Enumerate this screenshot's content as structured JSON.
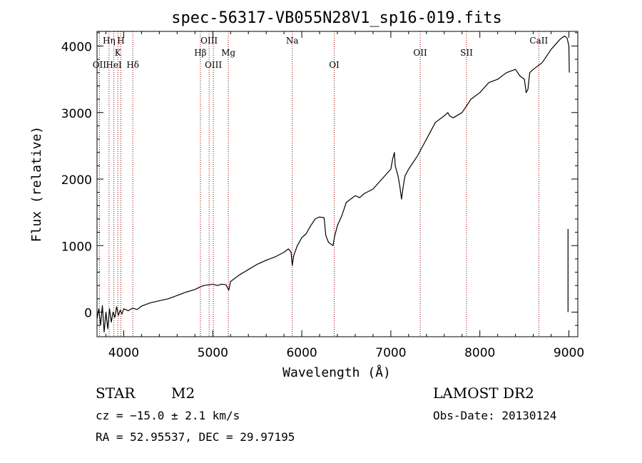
{
  "chart_data": {
    "type": "line",
    "title": "spec-56317-VB055N28V1_sp16-019.fits",
    "xlabel": "Wavelength (Å)",
    "ylabel": "Flux (relative)",
    "xlim": [
      3700,
      9100
    ],
    "ylim": [
      -370,
      4220
    ],
    "xticks": [
      4000,
      5000,
      6000,
      7000,
      8000,
      9000
    ],
    "yticks": [
      0,
      1000,
      2000,
      3000,
      4000
    ],
    "line_color": "#000000",
    "marker_color": "#990000",
    "series": [
      {
        "name": "flux",
        "points": [
          [
            3700,
            -100
          ],
          [
            3720,
            50
          ],
          [
            3740,
            -200
          ],
          [
            3760,
            100
          ],
          [
            3780,
            -300
          ],
          [
            3800,
            0
          ],
          [
            3820,
            -250
          ],
          [
            3840,
            50
          ],
          [
            3860,
            -150
          ],
          [
            3880,
            0
          ],
          [
            3900,
            -80
          ],
          [
            3920,
            80
          ],
          [
            3940,
            -50
          ],
          [
            3960,
            30
          ],
          [
            3980,
            -30
          ],
          [
            4000,
            50
          ],
          [
            4050,
            20
          ],
          [
            4100,
            60
          ],
          [
            4150,
            40
          ],
          [
            4200,
            90
          ],
          [
            4300,
            140
          ],
          [
            4400,
            170
          ],
          [
            4500,
            200
          ],
          [
            4600,
            250
          ],
          [
            4700,
            300
          ],
          [
            4800,
            340
          ],
          [
            4860,
            380
          ],
          [
            4900,
            400
          ],
          [
            4950,
            410
          ],
          [
            5000,
            420
          ],
          [
            5050,
            400
          ],
          [
            5100,
            420
          ],
          [
            5150,
            410
          ],
          [
            5180,
            330
          ],
          [
            5200,
            460
          ],
          [
            5300,
            560
          ],
          [
            5400,
            640
          ],
          [
            5500,
            720
          ],
          [
            5600,
            780
          ],
          [
            5700,
            830
          ],
          [
            5800,
            900
          ],
          [
            5850,
            950
          ],
          [
            5880,
            900
          ],
          [
            5893,
            700
          ],
          [
            5910,
            850
          ],
          [
            5950,
            1000
          ],
          [
            6000,
            1120
          ],
          [
            6050,
            1180
          ],
          [
            6100,
            1300
          ],
          [
            6150,
            1400
          ],
          [
            6180,
            1420
          ],
          [
            6200,
            1430
          ],
          [
            6250,
            1420
          ],
          [
            6270,
            1150
          ],
          [
            6300,
            1050
          ],
          [
            6350,
            1000
          ],
          [
            6370,
            1150
          ],
          [
            6400,
            1300
          ],
          [
            6450,
            1450
          ],
          [
            6500,
            1650
          ],
          [
            6550,
            1700
          ],
          [
            6600,
            1750
          ],
          [
            6650,
            1720
          ],
          [
            6700,
            1780
          ],
          [
            6800,
            1850
          ],
          [
            6900,
            2000
          ],
          [
            7000,
            2150
          ],
          [
            7020,
            2300
          ],
          [
            7040,
            2400
          ],
          [
            7050,
            2200
          ],
          [
            7080,
            2050
          ],
          [
            7100,
            1900
          ],
          [
            7120,
            1700
          ],
          [
            7140,
            1900
          ],
          [
            7160,
            2050
          ],
          [
            7200,
            2150
          ],
          [
            7300,
            2350
          ],
          [
            7400,
            2600
          ],
          [
            7500,
            2850
          ],
          [
            7600,
            2950
          ],
          [
            7640,
            3000
          ],
          [
            7660,
            2950
          ],
          [
            7700,
            2920
          ],
          [
            7800,
            3000
          ],
          [
            7850,
            3100
          ],
          [
            7900,
            3200
          ],
          [
            8000,
            3300
          ],
          [
            8100,
            3450
          ],
          [
            8200,
            3500
          ],
          [
            8300,
            3600
          ],
          [
            8400,
            3650
          ],
          [
            8450,
            3550
          ],
          [
            8500,
            3500
          ],
          [
            8520,
            3300
          ],
          [
            8540,
            3350
          ],
          [
            8560,
            3600
          ],
          [
            8600,
            3650
          ],
          [
            8700,
            3750
          ],
          [
            8800,
            3950
          ],
          [
            8900,
            4100
          ],
          [
            8950,
            4150
          ],
          [
            8980,
            4120
          ],
          [
            9000,
            4000
          ],
          [
            9005,
            3600
          ]
        ]
      },
      {
        "name": "error-bar",
        "points": [
          [
            8990,
            1250
          ],
          [
            8990,
            0
          ]
        ]
      }
    ],
    "line_markers": [
      {
        "label": "OII",
        "wavelength": 3727,
        "row": 3
      },
      {
        "label": "Hη",
        "wavelength": 3835,
        "row": 1
      },
      {
        "label": "HeI",
        "wavelength": 3889,
        "row": 3
      },
      {
        "label": "K",
        "wavelength": 3934,
        "row": 2
      },
      {
        "label": "H",
        "wavelength": 3968,
        "row": 1
      },
      {
        "label": "Hδ",
        "wavelength": 4102,
        "row": 3
      },
      {
        "label": "Hβ",
        "wavelength": 4861,
        "row": 2
      },
      {
        "label": "OIII",
        "wavelength": 4959,
        "row": 1
      },
      {
        "label": "OIII",
        "wavelength": 5007,
        "row": 3
      },
      {
        "label": "Mg",
        "wavelength": 5175,
        "row": 2
      },
      {
        "label": "Na",
        "wavelength": 5893,
        "row": 1
      },
      {
        "label": "OI",
        "wavelength": 6364,
        "row": 3
      },
      {
        "label": "OII",
        "wavelength": 7330,
        "row": 2
      },
      {
        "label": "SII",
        "wavelength": 7850,
        "row": 2
      },
      {
        "label": "CaII",
        "wavelength": 8662,
        "row": 1
      }
    ]
  },
  "info": {
    "object_class": "STAR",
    "subclass": "M2",
    "survey": "LAMOST DR2",
    "redshift_line": "cz = −15.0 ± 2.1 km/s",
    "obs_date": "Obs-Date: 20130124",
    "coords": "RA =  52.95537, DEC =  29.97195"
  }
}
